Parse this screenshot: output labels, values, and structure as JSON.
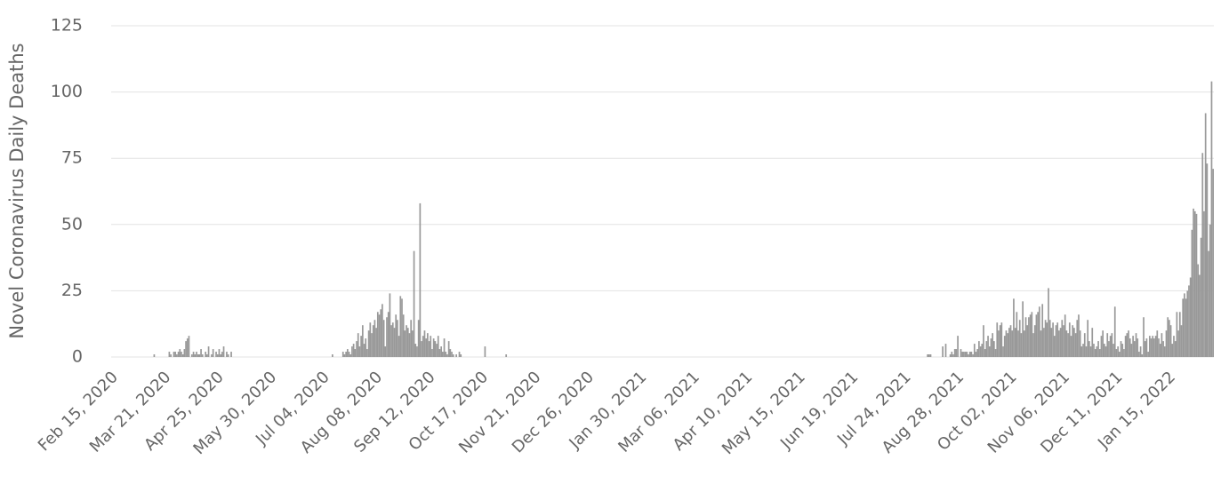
{
  "chart_data": {
    "type": "bar",
    "y_label": "Novel Coronavirus Daily Deaths",
    "color": "#999999",
    "grid": true,
    "ylim": [
      0,
      125
    ],
    "yticks": [
      0,
      25,
      50,
      75,
      100,
      125
    ],
    "categories": [
      "Feb 15, 2020",
      null,
      null,
      null,
      null,
      null,
      null,
      null,
      null,
      null,
      null,
      null,
      null,
      null,
      null,
      null,
      null,
      null,
      null,
      null,
      null,
      null,
      null,
      null,
      null,
      null,
      null,
      null,
      null,
      null,
      null,
      null,
      null,
      null,
      null,
      "Mar 21, 2020",
      null,
      null,
      null,
      null,
      null,
      null,
      null,
      null,
      null,
      null,
      null,
      null,
      null,
      null,
      null,
      null,
      null,
      null,
      null,
      null,
      null,
      null,
      null,
      null,
      null,
      null,
      null,
      null,
      null,
      null,
      null,
      null,
      null,
      null,
      "Apr 25, 2020",
      null,
      null,
      null,
      null,
      null,
      null,
      null,
      null,
      null,
      null,
      null,
      null,
      null,
      null,
      null,
      null,
      null,
      null,
      null,
      null,
      null,
      null,
      null,
      null,
      null,
      null,
      null,
      null,
      null,
      null,
      null,
      null,
      null,
      null,
      "May 30, 2020",
      null,
      null,
      null,
      null,
      null,
      null,
      null,
      null,
      null,
      null,
      null,
      null,
      null,
      null,
      null,
      null,
      null,
      null,
      null,
      null,
      null,
      null,
      null,
      null,
      null,
      null,
      null,
      null,
      null,
      null,
      null,
      null,
      null,
      null,
      "Jul 04, 2020",
      null,
      null,
      null,
      null,
      null,
      null,
      null,
      null,
      null,
      null,
      null,
      null,
      null,
      null,
      null,
      null,
      null,
      null,
      null,
      null,
      null,
      null,
      null,
      null,
      null,
      null,
      null,
      null,
      null,
      null,
      null,
      null,
      null,
      null,
      "Aug 08, 2020",
      null,
      null,
      null,
      null,
      null,
      null,
      null,
      null,
      null,
      null,
      null,
      null,
      null,
      null,
      null,
      null,
      null,
      null,
      null,
      null,
      null,
      null,
      null,
      null,
      null,
      null,
      null,
      null,
      null,
      null,
      null,
      null,
      null,
      null,
      "Sep 12, 2020",
      null,
      null,
      null,
      null,
      null,
      null,
      null,
      null,
      null,
      null,
      null,
      null,
      null,
      null,
      null,
      null,
      null,
      null,
      null,
      null,
      null,
      null,
      null,
      null,
      null,
      null,
      null,
      null,
      null,
      null,
      null,
      null,
      null,
      null,
      "Oct 17, 2020",
      null,
      null,
      null,
      null,
      null,
      null,
      null,
      null,
      null,
      null,
      null,
      null,
      null,
      null,
      null,
      null,
      null,
      null,
      null,
      null,
      null,
      null,
      null,
      null,
      null,
      null,
      null,
      null,
      null,
      null,
      null,
      null,
      null,
      null,
      "Nov 21, 2020",
      null,
      null,
      null,
      null,
      null,
      null,
      null,
      null,
      null,
      null,
      null,
      null,
      null,
      null,
      null,
      null,
      null,
      null,
      null,
      null,
      null,
      null,
      null,
      null,
      null,
      null,
      null,
      null,
      null,
      null,
      null,
      null,
      null,
      null,
      "Dec 26, 2020",
      null,
      null,
      null,
      null,
      null,
      null,
      null,
      null,
      null,
      null,
      null,
      null,
      null,
      null,
      null,
      null,
      null,
      null,
      null,
      null,
      null,
      null,
      null,
      null,
      null,
      null,
      null,
      null,
      null,
      null,
      null,
      null,
      null,
      null,
      "Jan 30, 2021",
      null,
      null,
      null,
      null,
      null,
      null,
      null,
      null,
      null,
      null,
      null,
      null,
      null,
      null,
      null,
      null,
      null,
      null,
      null,
      null,
      null,
      null,
      null,
      null,
      null,
      null,
      null,
      null,
      null,
      null,
      null,
      null,
      null,
      null,
      "Mar 06, 2021",
      null,
      null,
      null,
      null,
      null,
      null,
      null,
      null,
      null,
      null,
      null,
      null,
      null,
      null,
      null,
      null,
      null,
      null,
      null,
      null,
      null,
      null,
      null,
      null,
      null,
      null,
      null,
      null,
      null,
      null,
      null,
      null,
      null,
      null,
      "Apr 10, 2021",
      null,
      null,
      null,
      null,
      null,
      null,
      null,
      null,
      null,
      null,
      null,
      null,
      null,
      null,
      null,
      null,
      null,
      null,
      null,
      null,
      null,
      null,
      null,
      null,
      null,
      null,
      null,
      null,
      null,
      null,
      null,
      null,
      null,
      null,
      "May 15, 2021",
      null,
      null,
      null,
      null,
      null,
      null,
      null,
      null,
      null,
      null,
      null,
      null,
      null,
      null,
      null,
      null,
      null,
      null,
      null,
      null,
      null,
      null,
      null,
      null,
      null,
      null,
      null,
      null,
      null,
      null,
      null,
      null,
      null,
      null,
      "Jun 19, 2021",
      null,
      null,
      null,
      null,
      null,
      null,
      null,
      null,
      null,
      null,
      null,
      null,
      null,
      null,
      null,
      null,
      null,
      null,
      null,
      null,
      null,
      null,
      null,
      null,
      null,
      null,
      null,
      null,
      null,
      null,
      null,
      null,
      null,
      null,
      "Jul 24, 2021",
      null,
      null,
      null,
      null,
      null,
      null,
      null,
      null,
      null,
      null,
      null,
      null,
      null,
      null,
      null,
      null,
      null,
      null,
      null,
      null,
      null,
      null,
      null,
      null,
      null,
      null,
      null,
      null,
      null,
      null,
      null,
      null,
      null,
      null,
      "Aug 28, 2021",
      null,
      null,
      null,
      null,
      null,
      null,
      null,
      null,
      null,
      null,
      null,
      null,
      null,
      null,
      null,
      null,
      null,
      null,
      null,
      null,
      null,
      null,
      null,
      null,
      null,
      null,
      null,
      null,
      null,
      null,
      null,
      null,
      null,
      null,
      "Oct 02, 2021",
      null,
      null,
      null,
      null,
      null,
      null,
      null,
      null,
      null,
      null,
      null,
      null,
      null,
      null,
      null,
      null,
      null,
      null,
      null,
      null,
      null,
      null,
      null,
      null,
      null,
      null,
      null,
      null,
      null,
      null,
      null,
      null,
      null,
      null,
      "Nov 06, 2021",
      null,
      null,
      null,
      null,
      null,
      null,
      null,
      null,
      null,
      null,
      null,
      null,
      null,
      null,
      null,
      null,
      null,
      null,
      null,
      null,
      null,
      null,
      null,
      null,
      null,
      null,
      null,
      null,
      null,
      null,
      null,
      null,
      null,
      null,
      "Dec 11, 2021",
      null,
      null,
      null,
      null,
      null,
      null,
      null,
      null,
      null,
      null,
      null,
      null,
      null,
      null,
      null,
      null,
      null,
      null,
      null,
      null,
      null,
      null,
      null,
      null,
      null,
      null,
      null,
      null,
      null,
      null,
      null,
      null,
      null,
      null,
      "Jan 15, 2022",
      null,
      null,
      null,
      null,
      null,
      null,
      null,
      null,
      null,
      null,
      null,
      null,
      null,
      null,
      null,
      null,
      null,
      null,
      null,
      null,
      null,
      null,
      null,
      null,
      null,
      null,
      null,
      null,
      null
    ],
    "values": [
      0,
      0,
      0,
      0,
      0,
      0,
      0,
      0,
      0,
      0,
      0,
      0,
      0,
      0,
      0,
      0,
      0,
      0,
      0,
      0,
      0,
      0,
      0,
      0,
      0,
      0,
      0,
      0,
      1,
      0,
      0,
      0,
      0,
      0,
      0,
      0,
      0,
      0,
      2,
      1,
      0,
      2,
      2,
      1,
      2,
      3,
      2,
      1,
      3,
      6,
      7,
      8,
      0,
      1,
      2,
      1,
      2,
      1,
      1,
      3,
      1,
      0,
      2,
      1,
      4,
      0,
      1,
      3,
      0,
      2,
      1,
      3,
      1,
      2,
      4,
      0,
      2,
      1,
      0,
      2,
      0,
      0,
      0,
      0,
      0,
      0,
      0,
      0,
      0,
      0,
      0,
      0,
      0,
      0,
      0,
      0,
      0,
      0,
      0,
      0,
      0,
      0,
      0,
      0,
      0,
      0,
      0,
      0,
      0,
      0,
      0,
      0,
      0,
      0,
      0,
      0,
      0,
      0,
      0,
      0,
      0,
      0,
      0,
      0,
      0,
      0,
      0,
      0,
      0,
      0,
      0,
      0,
      0,
      0,
      0,
      0,
      0,
      0,
      0,
      0,
      0,
      0,
      0,
      0,
      0,
      0,
      1,
      0,
      0,
      0,
      0,
      0,
      0,
      2,
      1,
      2,
      3,
      2,
      1,
      4,
      5,
      3,
      6,
      9,
      4,
      8,
      12,
      5,
      7,
      3,
      10,
      13,
      9,
      12,
      14,
      11,
      17,
      16,
      18,
      20,
      14,
      4,
      15,
      17,
      24,
      12,
      13,
      11,
      16,
      14,
      8,
      23,
      22,
      16,
      10,
      12,
      11,
      9,
      14,
      10,
      40,
      5,
      4,
      14,
      58,
      6,
      8,
      10,
      7,
      9,
      6,
      8,
      3,
      7,
      6,
      5,
      8,
      3,
      4,
      2,
      7,
      2,
      1,
      6,
      3,
      2,
      1,
      0,
      1,
      0,
      2,
      1,
      0,
      0,
      0,
      0,
      0,
      0,
      0,
      0,
      0,
      0,
      0,
      0,
      0,
      0,
      0,
      4,
      0,
      0,
      0,
      0,
      0,
      0,
      0,
      0,
      0,
      0,
      0,
      0,
      0,
      1,
      0,
      0,
      0,
      0,
      0,
      0,
      0,
      0,
      0,
      0,
      0,
      0,
      0,
      0,
      0,
      0,
      0,
      0,
      0,
      0,
      0,
      0,
      0,
      0,
      0,
      0,
      0,
      0,
      0,
      0,
      0,
      0,
      0,
      0,
      0,
      0,
      0,
      0,
      0,
      0,
      0,
      0,
      0,
      0,
      0,
      0,
      0,
      0,
      0,
      0,
      0,
      0,
      0,
      0,
      0,
      0,
      0,
      0,
      0,
      0,
      0,
      0,
      0,
      0,
      0,
      0,
      0,
      0,
      0,
      0,
      0,
      0,
      0,
      0,
      0,
      0,
      0,
      0,
      0,
      0,
      0,
      0,
      0,
      0,
      0,
      0,
      0,
      0,
      0,
      0,
      0,
      0,
      0,
      0,
      0,
      0,
      0,
      0,
      0,
      0,
      0,
      0,
      0,
      0,
      0,
      0,
      0,
      0,
      0,
      0,
      0,
      0,
      0,
      0,
      0,
      0,
      0,
      0,
      0,
      0,
      0,
      0,
      0,
      0,
      0,
      0,
      0,
      0,
      0,
      0,
      0,
      0,
      0,
      0,
      0,
      0,
      0,
      0,
      0,
      0,
      0,
      0,
      0,
      0,
      0,
      0,
      0,
      0,
      0,
      0,
      0,
      0,
      0,
      0,
      0,
      0,
      0,
      0,
      0,
      0,
      0,
      0,
      0,
      0,
      0,
      0,
      0,
      0,
      0,
      0,
      0,
      0,
      0,
      0,
      0,
      0,
      0,
      0,
      0,
      0,
      0,
      0,
      0,
      0,
      0,
      0,
      0,
      0,
      0,
      0,
      0,
      0,
      0,
      0,
      0,
      0,
      0,
      0,
      0,
      0,
      0,
      0,
      0,
      0,
      0,
      0,
      0,
      0,
      0,
      0,
      0,
      0,
      0,
      0,
      0,
      0,
      0,
      0,
      0,
      0,
      0,
      0,
      0,
      0,
      0,
      0,
      0,
      0,
      0,
      0,
      0,
      0,
      0,
      0,
      0,
      0,
      0,
      0,
      0,
      0,
      0,
      0,
      0,
      0,
      0,
      0,
      0,
      0,
      0,
      0,
      0,
      0,
      0,
      0,
      0,
      0,
      0,
      0,
      0,
      0,
      0,
      0,
      0,
      0,
      0,
      0,
      0,
      0,
      0,
      0,
      0,
      0,
      0,
      0,
      0,
      0,
      0,
      0,
      1,
      1,
      1,
      0,
      0,
      0,
      0,
      0,
      0,
      0,
      4,
      0,
      5,
      0,
      0,
      1,
      2,
      1,
      3,
      3,
      8,
      0,
      3,
      2,
      2,
      2,
      2,
      1,
      2,
      2,
      1,
      5,
      2,
      3,
      6,
      4,
      5,
      12,
      3,
      6,
      8,
      4,
      7,
      9,
      6,
      3,
      13,
      10,
      12,
      13,
      4,
      8,
      10,
      9,
      11,
      12,
      10,
      22,
      11,
      17,
      10,
      14,
      9,
      21,
      10,
      15,
      12,
      15,
      16,
      17,
      9,
      12,
      16,
      17,
      19,
      10,
      20,
      11,
      14,
      13,
      26,
      14,
      11,
      13,
      8,
      12,
      13,
      10,
      11,
      14,
      12,
      16,
      10,
      9,
      13,
      8,
      12,
      11,
      9,
      14,
      16,
      10,
      4,
      5,
      9,
      4,
      14,
      6,
      4,
      11,
      5,
      3,
      4,
      6,
      3,
      8,
      10,
      5,
      4,
      9,
      6,
      8,
      9,
      5,
      19,
      3,
      4,
      2,
      6,
      5,
      3,
      8,
      9,
      10,
      7,
      5,
      8,
      6,
      9,
      7,
      2,
      4,
      1,
      15,
      6,
      7,
      2,
      8,
      7,
      8,
      7,
      8,
      10,
      7,
      5,
      9,
      6,
      4,
      10,
      15,
      14,
      12,
      5,
      8,
      6,
      17,
      10,
      17,
      12,
      22,
      24,
      22,
      25,
      27,
      30,
      48,
      56,
      55,
      54,
      35,
      31,
      45,
      77,
      55,
      92,
      73,
      40,
      50,
      104,
      71
    ]
  }
}
